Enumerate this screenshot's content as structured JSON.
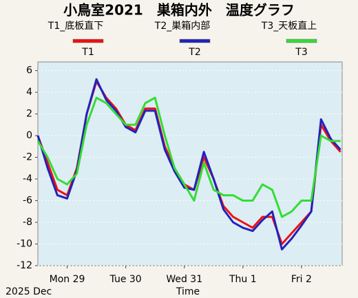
{
  "chart_data": {
    "type": "line",
    "title": "小鳥室2021　巣箱内外　温度グラフ",
    "xlabel": "Time",
    "x_date_label": "2025 Dec",
    "x": [
      "2025-12-28T12:00",
      "2025-12-28T16:00",
      "2025-12-28T20:00",
      "2025-12-29T00:00",
      "2025-12-29T04:00",
      "2025-12-29T08:00",
      "2025-12-29T12:00",
      "2025-12-29T16:00",
      "2025-12-29T20:00",
      "2025-12-30T00:00",
      "2025-12-30T04:00",
      "2025-12-30T08:00",
      "2025-12-30T12:00",
      "2025-12-30T16:00",
      "2025-12-30T20:00",
      "2025-12-31T00:00",
      "2025-12-31T04:00",
      "2025-12-31T08:00",
      "2025-12-31T12:00",
      "2025-12-31T16:00",
      "2025-12-31T20:00",
      "2026-01-01T00:00",
      "2026-01-01T04:00",
      "2026-01-01T08:00",
      "2026-01-01T12:00",
      "2026-01-01T16:00",
      "2026-01-01T20:00",
      "2026-01-02T00:00",
      "2026-01-02T04:00",
      "2026-01-02T08:00",
      "2026-01-02T12:00",
      "2026-01-02T16:00"
    ],
    "series": [
      {
        "name": "T1",
        "label": "T1_底板直下",
        "color": "#ee1111",
        "values": [
          0,
          -2.5,
          -5,
          -5.5,
          -3,
          2,
          5,
          3.5,
          2.5,
          1,
          0.5,
          2.5,
          2.5,
          -1,
          -3,
          -4.5,
          -5,
          -2,
          -4,
          -6.5,
          -7.5,
          -8,
          -8.5,
          -7.5,
          -7.5,
          -10,
          -9,
          -8,
          -7,
          1,
          -0.5,
          -1.5
        ]
      },
      {
        "name": "T2",
        "label": "T2_巣箱内部",
        "color": "#2222bb",
        "values": [
          0,
          -3,
          -5.5,
          -5.8,
          -3.2,
          2,
          5.2,
          3.3,
          2.3,
          0.8,
          0.3,
          2.3,
          2.3,
          -1.3,
          -3.3,
          -4.8,
          -5,
          -1.5,
          -4,
          -6.8,
          -8,
          -8.5,
          -8.8,
          -7.8,
          -7,
          -10.5,
          -9.5,
          -8.3,
          -7,
          1.5,
          -0.3,
          -1.3
        ]
      },
      {
        "name": "T3",
        "label": "T3_天板直上",
        "color": "#33dd33",
        "values": [
          -0.5,
          -2,
          -4,
          -4.5,
          -3.5,
          1,
          3.5,
          3,
          2,
          1,
          1,
          3,
          3.5,
          0,
          -3,
          -4.5,
          -6,
          -2.5,
          -5,
          -5.5,
          -5.5,
          -6,
          -6,
          -4.5,
          -5,
          -7.5,
          -7,
          -6,
          -6,
          0,
          -0.5,
          -0.5
        ]
      }
    ],
    "xlim": [
      "2025-12-28T12:00",
      "2026-01-02T16:40"
    ],
    "xticks": [
      {
        "value": "2025-12-29T00:00",
        "label": "Mon 29"
      },
      {
        "value": "2025-12-30T00:00",
        "label": "Tue 30"
      },
      {
        "value": "2025-12-31T00:00",
        "label": "Wed 31"
      },
      {
        "value": "2026-01-01T00:00",
        "label": "Thu 1"
      },
      {
        "value": "2026-01-02T00:00",
        "label": "Fri 2"
      }
    ],
    "ylim": [
      -12,
      6.8
    ],
    "yticks": [
      -12,
      -10,
      -8,
      -6,
      -4,
      -2,
      0,
      2,
      4,
      6
    ],
    "grid": true
  }
}
